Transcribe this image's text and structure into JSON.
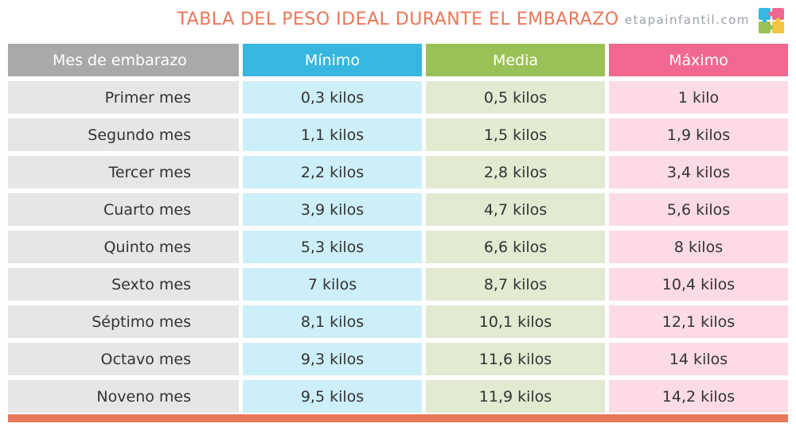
{
  "header": {
    "title": "TABLA DEL PESO IDEAL DURANTE EL EMBARAZO",
    "site": "etapainfantil.com"
  },
  "colors": {
    "accent": "#e9775a",
    "header_month": "#a9a9a9",
    "header_min": "#37b7df",
    "header_mid": "#9ac157",
    "header_max": "#f06890"
  },
  "logo": {
    "icon": "puzzle-logo-icon"
  },
  "table": {
    "columns": [
      "Mes de embarazo",
      "Mínimo",
      "Media",
      "Máximo"
    ],
    "rows": [
      [
        "Primer mes",
        "0,3 kilos",
        "0,5 kilos",
        "1 kilo"
      ],
      [
        "Segundo mes",
        "1,1 kilos",
        "1,5 kilos",
        "1,9 kilos"
      ],
      [
        "Tercer mes",
        "2,2 kilos",
        "2,8 kilos",
        "3,4 kilos"
      ],
      [
        "Cuarto mes",
        "3,9 kilos",
        "4,7 kilos",
        "5,6 kilos"
      ],
      [
        "Quinto mes",
        "5,3 kilos",
        "6,6 kilos",
        "8 kilos"
      ],
      [
        "Sexto mes",
        "7 kilos",
        "8,7 kilos",
        "10,4 kilos"
      ],
      [
        "Séptimo mes",
        "8,1 kilos",
        "10,1 kilos",
        "12,1 kilos"
      ],
      [
        "Octavo mes",
        "9,3 kilos",
        "11,6 kilos",
        "14 kilos"
      ],
      [
        "Noveno mes",
        "9,5 kilos",
        "11,9 kilos",
        "14,2 kilos"
      ]
    ]
  }
}
